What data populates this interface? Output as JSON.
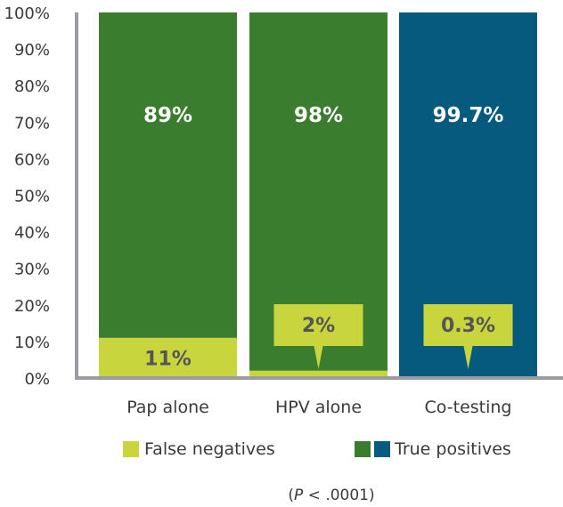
{
  "chart_data": {
    "type": "bar",
    "stacked": true,
    "categories": [
      "Pap alone",
      "HPV alone",
      "Co-testing"
    ],
    "series": [
      {
        "name": "False negatives",
        "values": [
          11,
          2,
          0.3
        ],
        "labels": [
          "11%",
          "2%",
          "0.3%"
        ]
      },
      {
        "name": "True positives",
        "values": [
          89,
          98,
          99.7
        ],
        "labels": [
          "89%",
          "98%",
          "99.7%"
        ]
      }
    ],
    "y_ticks": [
      "0%",
      "10%",
      "20%",
      "30%",
      "40%",
      "50%",
      "60%",
      "70%",
      "80%",
      "90%",
      "100%"
    ],
    "ylim": [
      0,
      100
    ],
    "grid": false,
    "legend_position": "bottom",
    "footnote_prefix": "(",
    "footnote_italic": "P",
    "footnote_suffix": " < .0001)"
  },
  "colors": {
    "false_negative": "#c9d53c",
    "true_positive_green": "#3a7d2f",
    "true_positive_blue": "#055a7e",
    "axis": "#9a9ea2",
    "text": "#3a3a3a"
  },
  "legend": {
    "false_negatives": "False negatives",
    "true_positives": "True positives"
  }
}
